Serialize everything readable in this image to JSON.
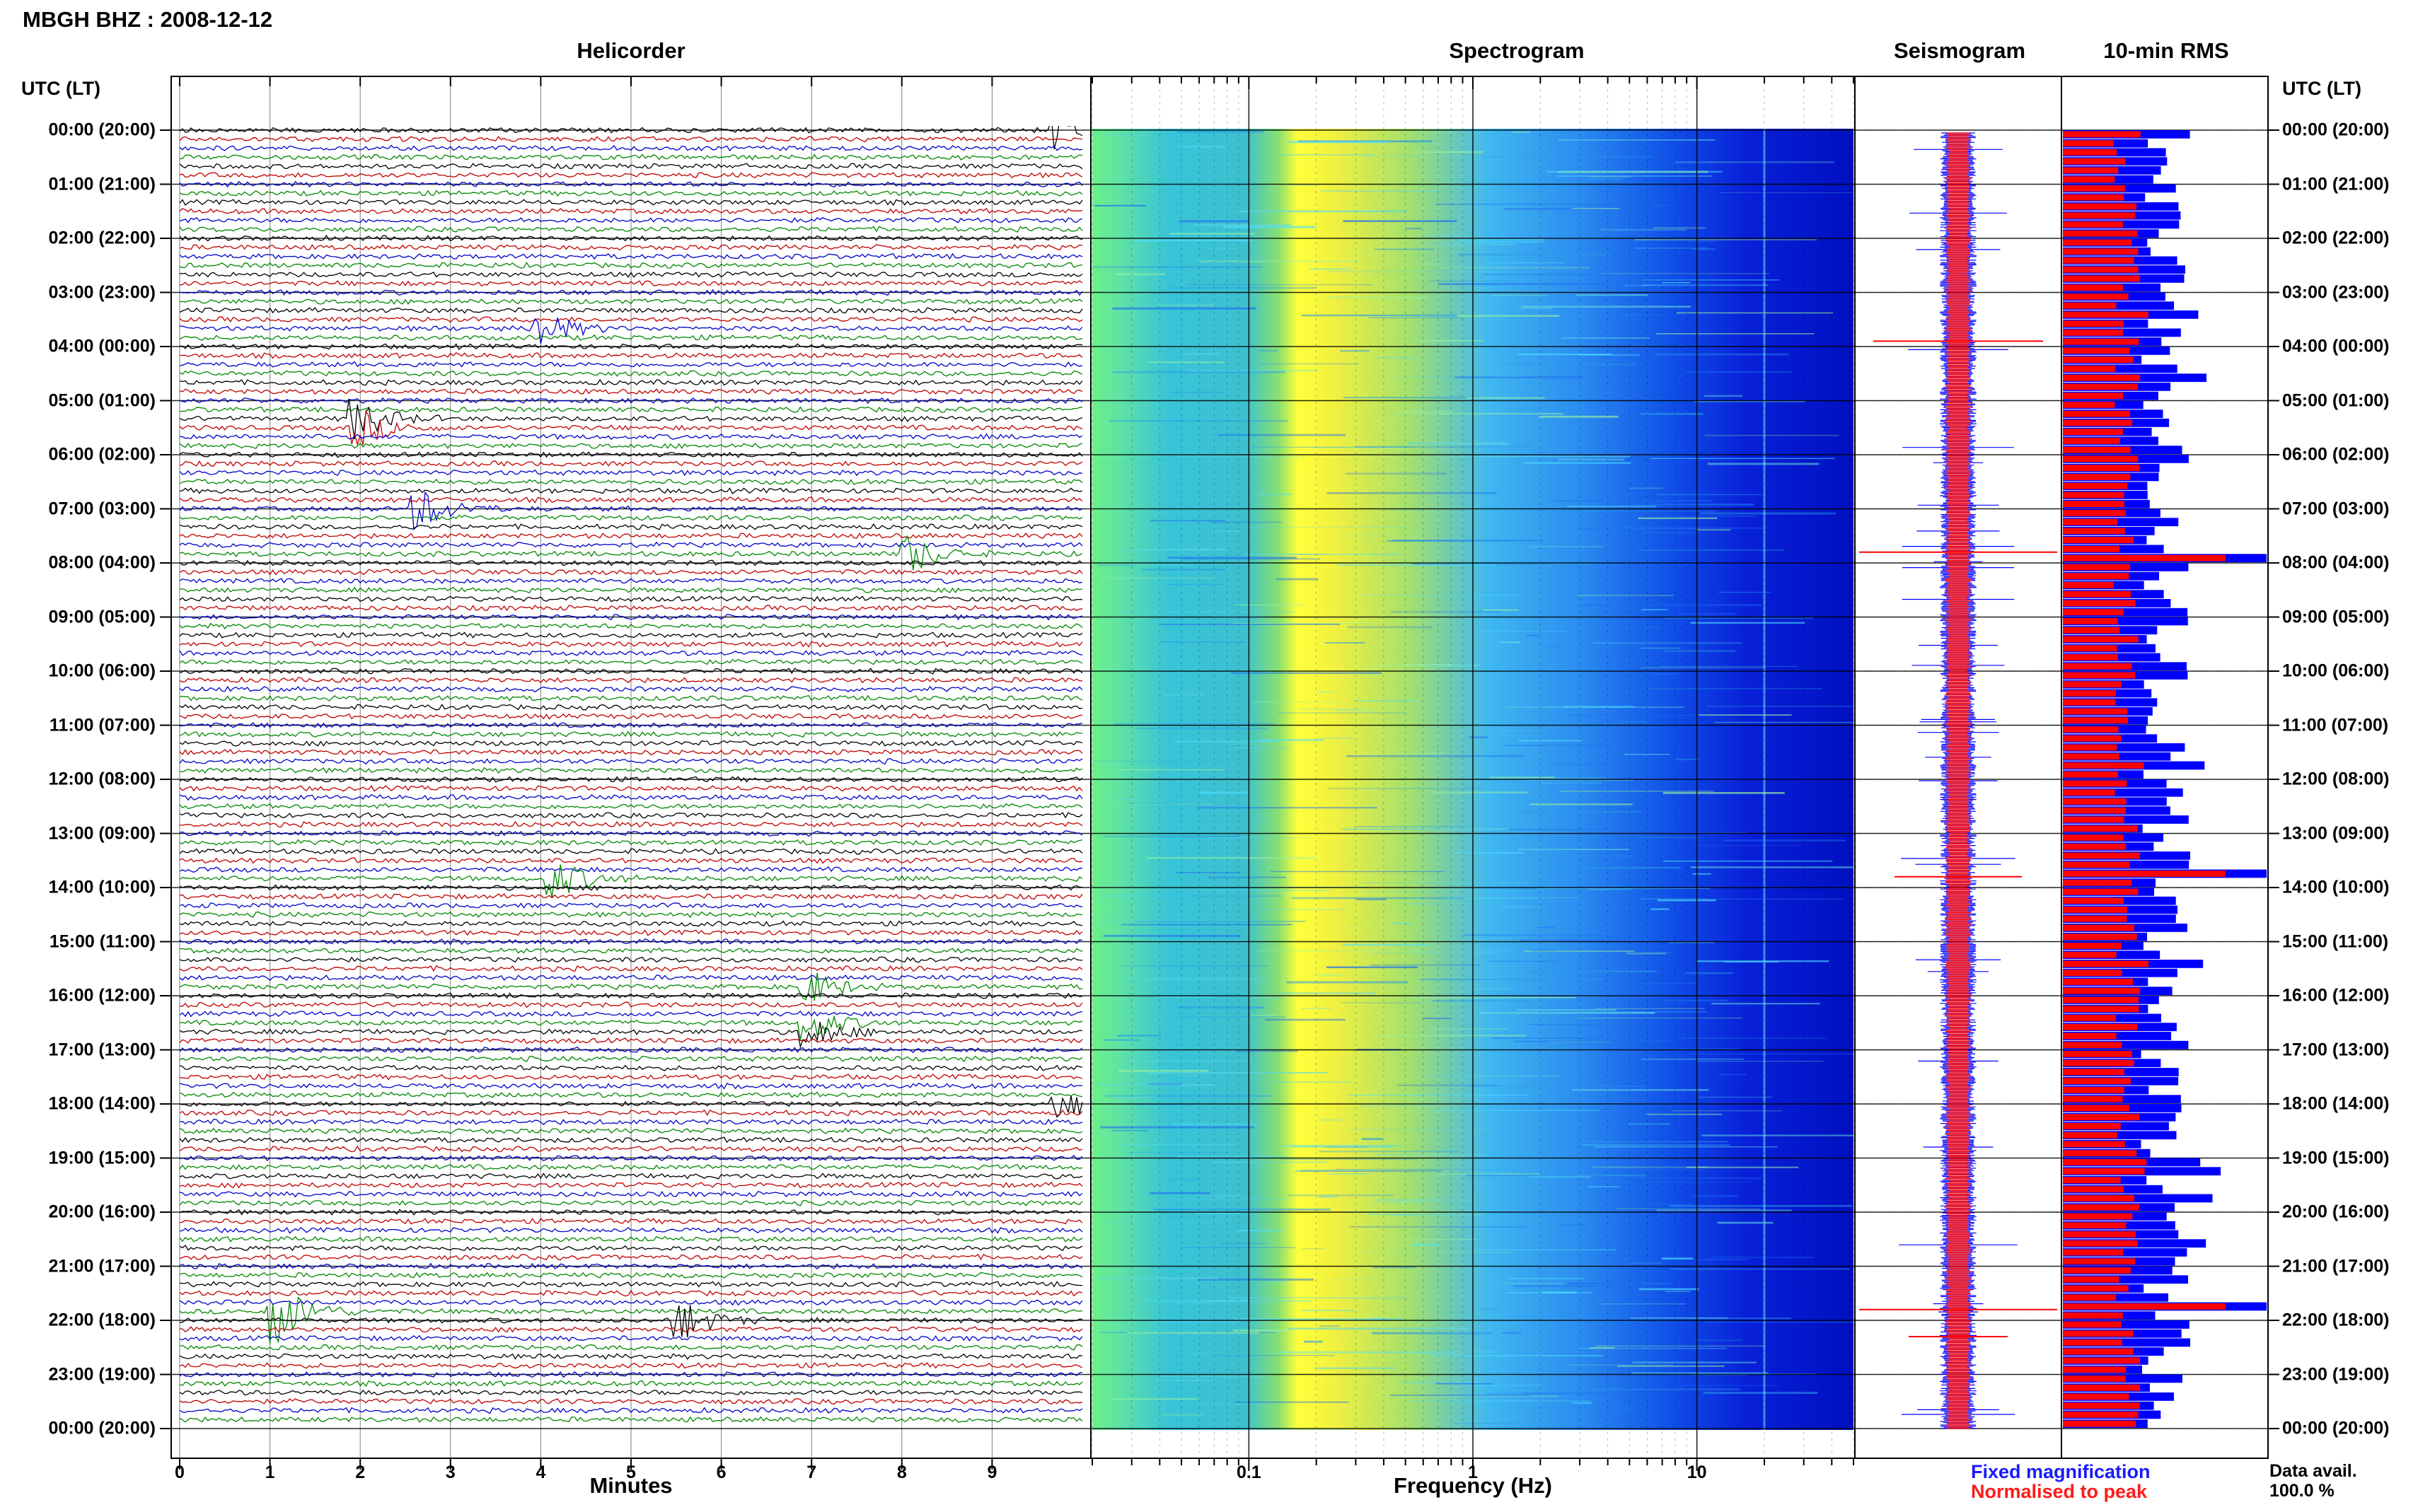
{
  "header": {
    "station_title": "MBGH BHZ : 2008-12-12"
  },
  "panels": {
    "helicorder": "Helicorder",
    "spectrogram": "Spectrogram",
    "seismogram": "Seismogram",
    "rms": "10-min RMS"
  },
  "axes": {
    "time_label_left": "UTC (LT)",
    "time_label_right": "UTC (LT)",
    "minutes_label": "Minutes",
    "frequency_label": "Frequency (Hz)"
  },
  "legend": {
    "fixed": "Fixed magnification",
    "normalised": "Normalised to peak",
    "fixed_color": "#0000ff",
    "normalised_color": "#ff0000"
  },
  "availability": {
    "label": "Data avail.",
    "value": "100.0 %"
  },
  "chart_data": [
    {
      "type": "line",
      "panel": "Helicorder",
      "xlabel": "Minutes",
      "xlim": [
        0,
        10
      ],
      "x_ticks": [
        "0",
        "1",
        "2",
        "3",
        "4",
        "5",
        "6",
        "7",
        "8",
        "9"
      ],
      "y_ticks": [
        "00:00 (20:00)",
        "01:00 (21:00)",
        "02:00 (22:00)",
        "03:00 (23:00)",
        "04:00 (00:00)",
        "05:00 (01:00)",
        "06:00 (02:00)",
        "07:00 (03:00)",
        "08:00 (04:00)",
        "09:00 (05:00)",
        "10:00 (06:00)",
        "11:00 (07:00)",
        "12:00 (08:00)",
        "13:00 (09:00)",
        "14:00 (10:00)",
        "15:00 (11:00)",
        "16:00 (12:00)",
        "17:00 (13:00)",
        "18:00 (14:00)",
        "19:00 (15:00)",
        "20:00 (16:00)",
        "21:00 (17:00)",
        "22:00 (18:00)",
        "23:00 (19:00)",
        "00:00 (20:00)"
      ],
      "line_colors": [
        "#000000",
        "#c00000",
        "#0000cc",
        "#008800"
      ],
      "traces_per_hour": 6,
      "events": [
        {
          "hour": 0.0,
          "minute": 9.8,
          "amp": 3,
          "color": "#000000"
        },
        {
          "hour": 3.7,
          "minute": 4.0,
          "amp": 3,
          "color": "#008800"
        },
        {
          "hour": 5.4,
          "minute": 2.0,
          "amp": 3,
          "color": "#0000cc"
        },
        {
          "hour": 7.0,
          "minute": 2.7,
          "amp": 3,
          "color": "#008800"
        },
        {
          "hour": 7.8,
          "minute": 8.1,
          "amp": 3,
          "color": "#008800"
        },
        {
          "hour": 13.8,
          "minute": 4.2,
          "amp": 3,
          "color": "#0000cc"
        },
        {
          "hour": 15.8,
          "minute": 7.0,
          "amp": 2.5,
          "color": "#0000cc"
        },
        {
          "hour": 16.6,
          "minute": 7.0,
          "amp": 2.5,
          "color": "#000000"
        },
        {
          "hour": 18.0,
          "minute": 9.8,
          "amp": 2.5,
          "color": "#000000"
        },
        {
          "hour": 21.8,
          "minute": 1.1,
          "amp": 5,
          "color": "#0000cc"
        },
        {
          "hour": 22.0,
          "minute": 5.6,
          "amp": 3,
          "color": "#c00000"
        }
      ]
    },
    {
      "type": "heatmap",
      "panel": "Spectrogram",
      "xlabel": "Frequency (Hz)",
      "x_scale": "log",
      "xlim": [
        0.02,
        50
      ],
      "x_ticks": [
        "0.1",
        "1",
        "10"
      ],
      "colormap": [
        "#70f070",
        "#30d0d0",
        "#ffff30",
        "#40b0ff",
        "#0010e0"
      ]
    },
    {
      "type": "line",
      "panel": "Seismogram",
      "series": [
        {
          "name": "Fixed magnification",
          "color": "#0000ff"
        },
        {
          "name": "Normalised to peak",
          "color": "#ff0000"
        }
      ]
    },
    {
      "type": "bar",
      "panel": "10-min RMS",
      "bins_per_hour": 6,
      "series": [
        {
          "name": "Fixed magnification",
          "color": "#0000ff"
        },
        {
          "name": "Normalised to peak",
          "color": "#ff0000"
        }
      ]
    }
  ]
}
